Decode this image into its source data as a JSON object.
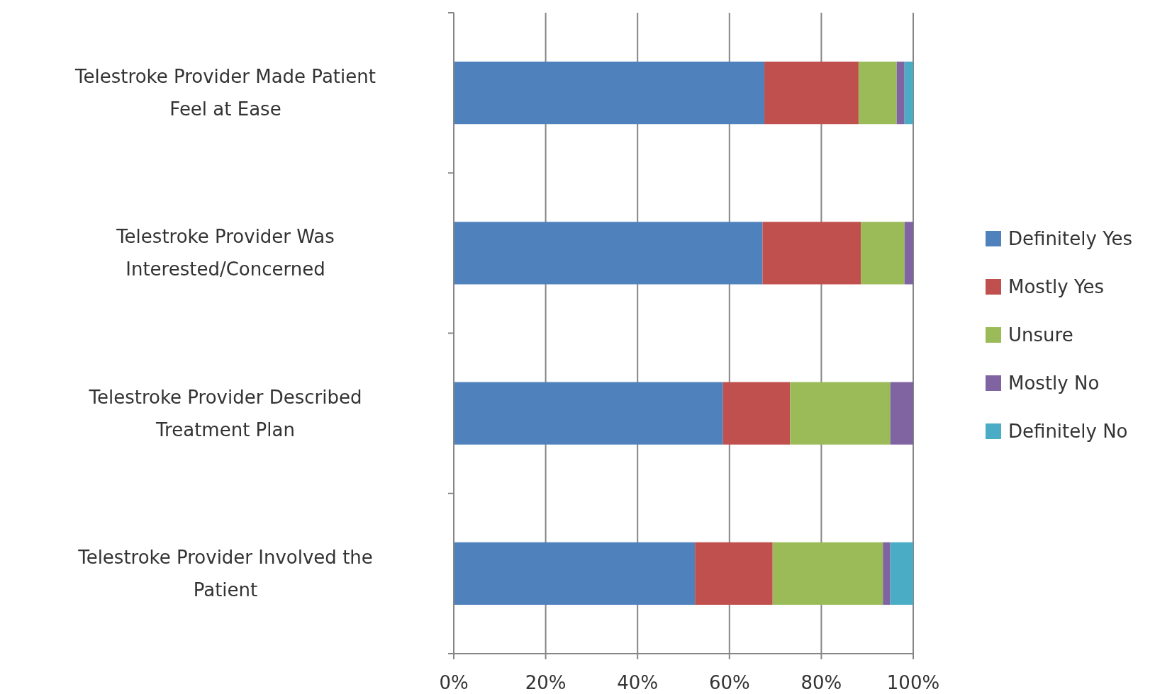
{
  "chart_data": {
    "type": "bar",
    "orientation": "horizontal",
    "stacked": true,
    "categories": [
      "Telestroke Provider Made Patient Feel at Ease",
      "Telestroke Provider Was Interested/Concerned",
      "Telestroke Provider Described Treatment Plan",
      "Telestroke Provider Involved the Patient"
    ],
    "series": [
      {
        "name": "Definitely Yes",
        "color": "#4f81bd",
        "values": [
          67.6,
          67.2,
          58.6,
          52.5
        ]
      },
      {
        "name": "Mostly Yes",
        "color": "#c0504d",
        "values": [
          20.5,
          21.4,
          14.6,
          16.9
        ]
      },
      {
        "name": "Unsure",
        "color": "#9bbb59",
        "values": [
          8.3,
          9.5,
          21.8,
          24.0
        ]
      },
      {
        "name": "Mostly No",
        "color": "#8064a2",
        "values": [
          1.7,
          1.9,
          5.0,
          1.6
        ]
      },
      {
        "name": "Definitely No",
        "color": "#4bacc6",
        "values": [
          1.9,
          0,
          0,
          5.0
        ]
      }
    ],
    "xlim": [
      0,
      100
    ],
    "xticks": [
      {
        "value": 0,
        "label": "0%"
      },
      {
        "value": 20,
        "label": "20%"
      },
      {
        "value": 40,
        "label": "40%"
      },
      {
        "value": 60,
        "label": "60%"
      },
      {
        "value": 80,
        "label": "80%"
      },
      {
        "value": 100,
        "label": "100%"
      }
    ],
    "grid": "x",
    "legend": "right"
  }
}
